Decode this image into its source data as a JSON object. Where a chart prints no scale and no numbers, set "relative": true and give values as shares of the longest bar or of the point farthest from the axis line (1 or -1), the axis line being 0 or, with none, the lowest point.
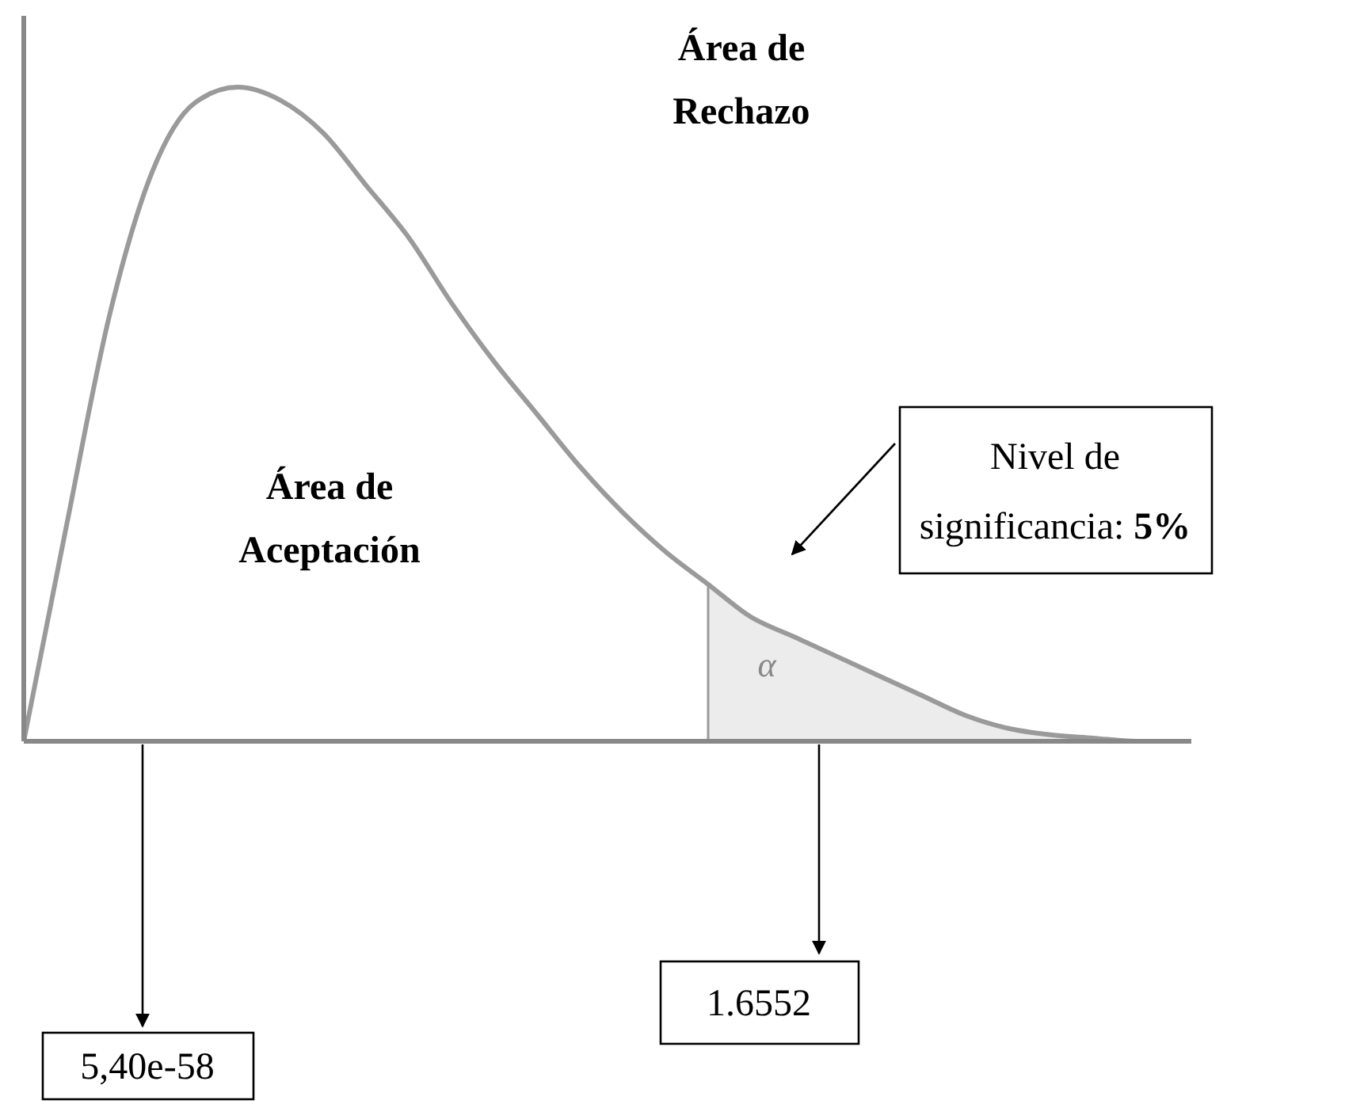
{
  "chart_data": {
    "type": "line",
    "relative": true,
    "categories": [
      null,
      null,
      null,
      null,
      null,
      null,
      null,
      null,
      null,
      null,
      null,
      null,
      null,
      null,
      null,
      null,
      null,
      null,
      null,
      null,
      null,
      null,
      null,
      null,
      null,
      null,
      null,
      null
    ],
    "series": [
      {
        "type": "area",
        "color": "#ececec",
        "values": [
          null,
          null,
          null,
          null,
          null,
          null,
          null,
          null,
          null,
          null,
          null,
          null,
          null,
          null,
          null,
          null,
          0.24,
          0.19,
          0.16,
          0.13,
          0.1,
          0.07,
          0.04,
          0.02,
          0.01,
          0.005,
          0,
          0
        ]
      },
      {
        "type": "line",
        "color": "#9a9a9a",
        "values": [
          0,
          0.33,
          0.65,
          0.87,
          0.976,
          1,
          0.98,
          0.93,
          0.85,
          0.77,
          0.67,
          0.58,
          0.5,
          0.42,
          0.35,
          0.29,
          0.24,
          0.19,
          0.16,
          0.13,
          0.1,
          0.07,
          0.04,
          0.02,
          0.01,
          0.005,
          0,
          0
        ]
      }
    ],
    "annotations": [
      "Área de Rechazo",
      "Área de Aceptación",
      "α",
      "Nivel de significancia: 5%",
      "1.6552",
      "5,40e-58"
    ]
  }
}
